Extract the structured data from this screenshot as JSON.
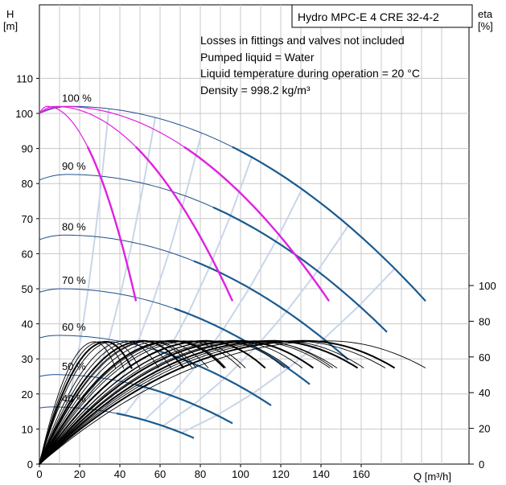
{
  "chart_data": {
    "type": "line",
    "title": "Hydro MPC-E 4 CRE 32-4-2",
    "notes": [
      "Losses in fittings and valves not included",
      "Pumped liquid = Water",
      "Liquid temperature during operation = 20 °C",
      "Density = 998.2 kg/m³"
    ],
    "y_left_label_line1": "H",
    "y_left_label_line2": "[m]",
    "y_right_label_line1": "eta",
    "y_right_label_line2": "[%]",
    "x_label": "Q [m³/h]",
    "x_ticks": [
      "0",
      "20",
      "40",
      "60",
      "80",
      "100",
      "120",
      "140",
      "160"
    ],
    "y_left_ticks": [
      "0",
      "10",
      "20",
      "30",
      "40",
      "50",
      "60",
      "70",
      "80",
      "90",
      "100",
      "110"
    ],
    "y_right_ticks": [
      "0",
      "20",
      "40",
      "60",
      "80",
      "100"
    ],
    "xlim": [
      0,
      210
    ],
    "ylim": [
      0,
      120
    ],
    "eta_ylim": [
      0,
      100
    ],
    "speed_labels": [
      "100 %",
      "90 %",
      "80 %",
      "70 %",
      "60 %",
      "50 %",
      "40 %"
    ],
    "colors": {
      "hq_curve": "#1f4e8c",
      "bold_curve": "#1a5a8e",
      "magenta_curve": "#e020e0",
      "efficiency": "#000000",
      "iso_curve": "#c8d6e8",
      "grid": "#c8c8c8"
    },
    "hq_curves": [
      {
        "speed": "100 %",
        "h0": 100,
        "hmax": 102,
        "qmax": 192
      },
      {
        "speed": "90 %",
        "h0": 81,
        "hmax": 82.6,
        "qmax": 172.8
      },
      {
        "speed": "80 %",
        "h0": 64,
        "hmax": 65.3,
        "qmax": 153.6
      },
      {
        "speed": "70 %",
        "h0": 49,
        "hmax": 50,
        "qmax": 134.4
      },
      {
        "speed": "60 %",
        "h0": 36,
        "hmax": 36.7,
        "qmax": 115.2
      },
      {
        "speed": "50 %",
        "h0": 25,
        "hmax": 25.5,
        "qmax": 96
      },
      {
        "speed": "40 %",
        "h0": 16,
        "hmax": 16.3,
        "qmax": 76.8
      }
    ],
    "magenta_curves": [
      {
        "pumps": 1,
        "qmax": 48,
        "hend": 46.5
      },
      {
        "pumps": 2,
        "qmax": 96,
        "hend": 46.5
      },
      {
        "pumps": 3,
        "qmax": 144,
        "hend": 46.5
      }
    ],
    "efficiency_curves": [
      {
        "qpeak": 36,
        "etapeak": 68.5,
        "qend": 50
      },
      {
        "qpeak": 56,
        "etapeak": 69,
        "qend": 78
      },
      {
        "qpeak": 72,
        "etapeak": 69,
        "qend": 100
      },
      {
        "qpeak": 90,
        "etapeak": 69,
        "qend": 122
      },
      {
        "qpeak": 108,
        "etapeak": 69,
        "qend": 148
      },
      {
        "qpeak": 126,
        "etapeak": 69,
        "qend": 172
      },
      {
        "qpeak": 144,
        "etapeak": 69,
        "qend": 192
      }
    ]
  }
}
